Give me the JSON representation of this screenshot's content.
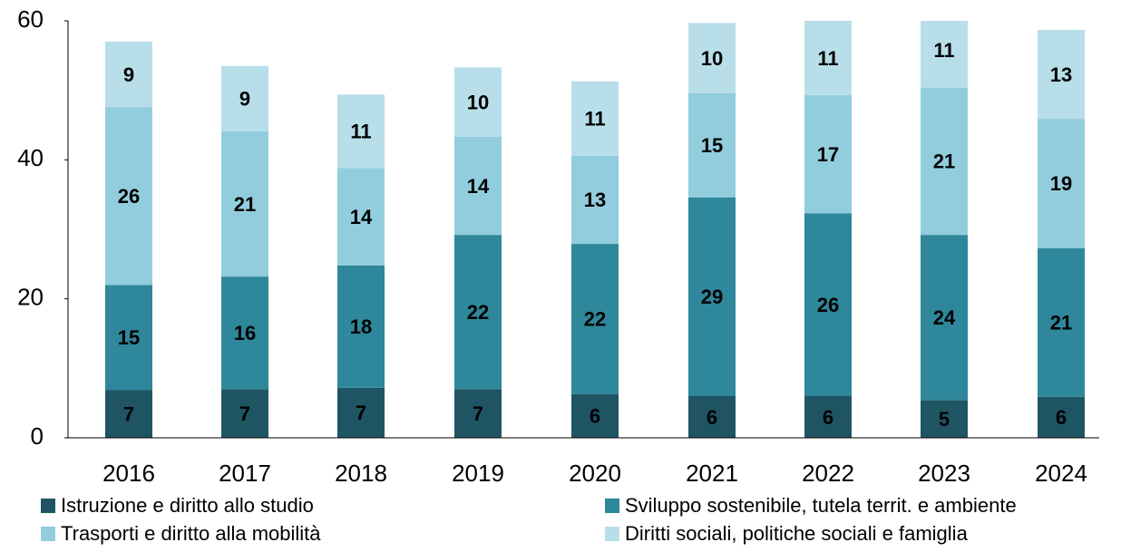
{
  "chart_data": {
    "type": "stacked_bar",
    "categories": [
      "2016",
      "2017",
      "2018",
      "2019",
      "2020",
      "2021",
      "2022",
      "2023",
      "2024"
    ],
    "ylim": [
      0,
      60
    ],
    "yticks": [
      0,
      20,
      40,
      60
    ],
    "series": [
      {
        "name": "Istruzione e diritto allo studio",
        "color": "#1f5563",
        "values": [
          6.9,
          7.0,
          7.2,
          7.0,
          6.3,
          6.0,
          6.0,
          5.4,
          5.9
        ],
        "value_labels": [
          "7",
          "7",
          "7",
          "7",
          "6",
          "6",
          "6",
          "5",
          "6"
        ]
      },
      {
        "name": "Sviluppo sostenibile, tutela territ. e ambiente",
        "color": "#2e879b",
        "values": [
          15.1,
          16.2,
          17.6,
          22.2,
          21.6,
          28.6,
          26.3,
          23.8,
          21.4
        ],
        "value_labels": [
          "15",
          "16",
          "18",
          "22",
          "22",
          "29",
          "26",
          "24",
          "21"
        ]
      },
      {
        "name": "Trasporti e diritto alla mobilità",
        "color": "#92cddd",
        "values": [
          25.6,
          20.9,
          14.0,
          14.1,
          12.7,
          15.0,
          17.0,
          21.2,
          18.6
        ],
        "value_labels": [
          "26",
          "21",
          "14",
          "14",
          "13",
          "15",
          "17",
          "21",
          "19"
        ]
      },
      {
        "name": "Diritti sociali, politiche sociali e famiglia",
        "color": "#b8dfe9",
        "values": [
          9.4,
          9.4,
          10.6,
          10.0,
          10.7,
          10.1,
          10.7,
          10.8,
          12.8
        ],
        "value_labels": [
          "9",
          "9",
          "11",
          "10",
          "11",
          "10",
          "11",
          "11",
          "13"
        ]
      }
    ]
  }
}
